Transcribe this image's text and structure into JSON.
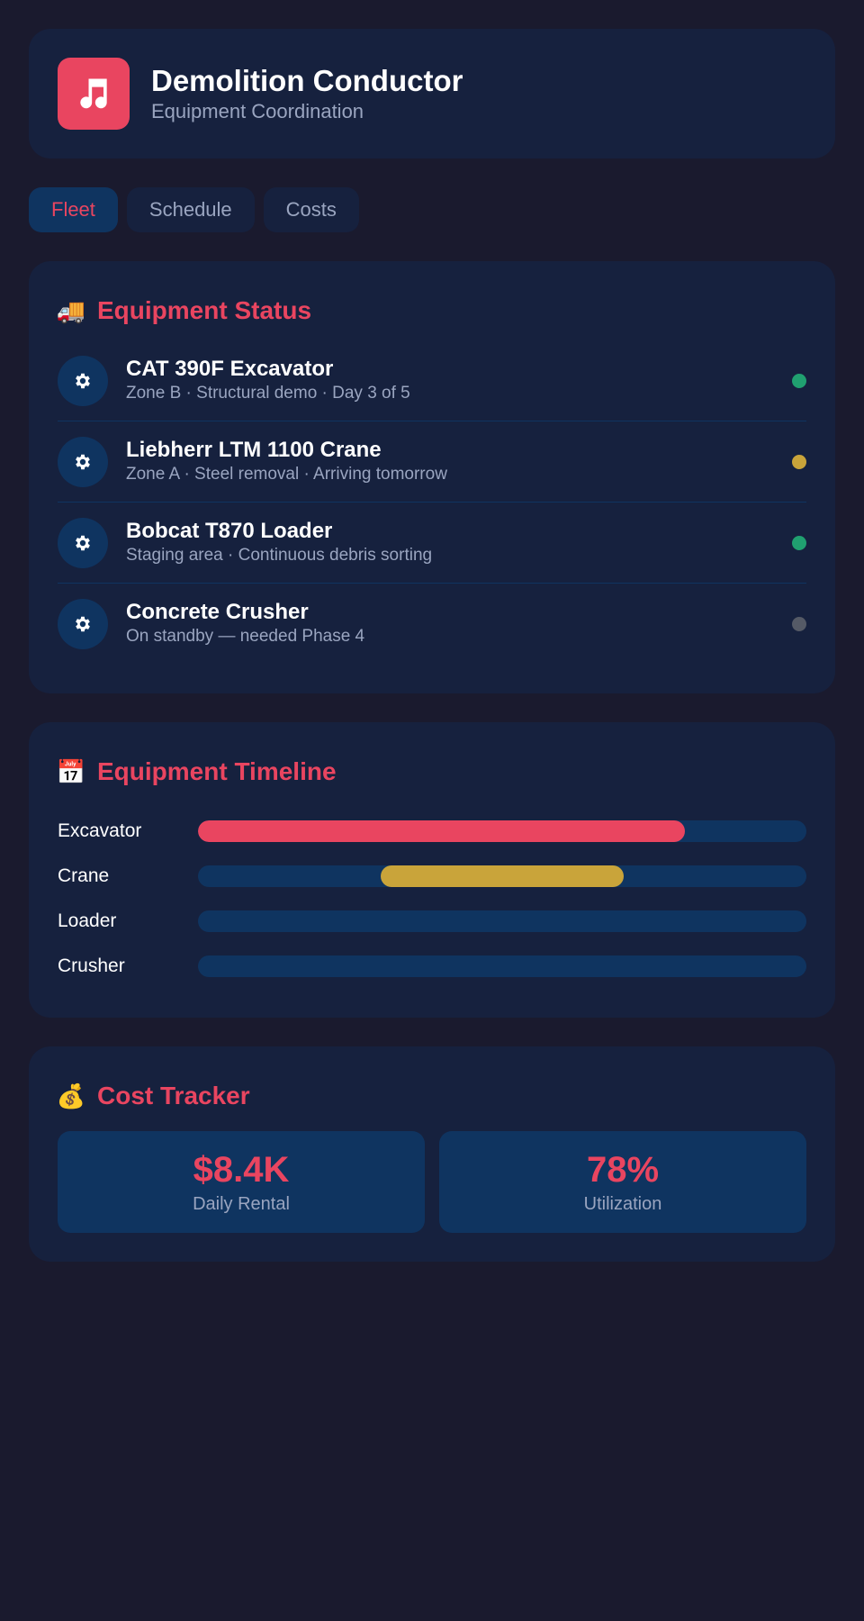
{
  "app": {
    "icon": "music-note-icon",
    "title": "Demolition Conductor",
    "subtitle": "Equipment Coordination"
  },
  "tabs": [
    {
      "label": "Fleet",
      "active": true
    },
    {
      "label": "Schedule",
      "active": false
    },
    {
      "label": "Costs",
      "active": false
    }
  ],
  "status_section": {
    "icon": "delivery-truck-icon",
    "emoji": "🚚",
    "title": "Equipment Status",
    "items": [
      {
        "name": "CAT 390F Excavator",
        "detail": "Zone B · Structural demo · Day 3 of 5",
        "icon": "gear-icon",
        "status_color": "#20a070"
      },
      {
        "name": "Liebherr LTM 1100 Crane",
        "detail": "Zone A · Steel removal · Arriving tomorrow",
        "icon": "gear-icon",
        "status_color": "#c9a43a"
      },
      {
        "name": "Bobcat T870 Loader",
        "detail": "Staging area · Continuous debris sorting",
        "icon": "gear-icon",
        "status_color": "#20a070"
      },
      {
        "name": "Concrete Crusher",
        "detail": "On standby — needed Phase 4",
        "icon": "gear-icon",
        "status_color": "#555a66"
      }
    ]
  },
  "timeline_section": {
    "icon": "calendar-icon",
    "emoji": "📅",
    "title": "Equipment Timeline",
    "rows": [
      {
        "label": "Excavator",
        "start": 0.0,
        "end": 0.8,
        "color": "#e94560"
      },
      {
        "label": "Crane",
        "start": 0.3,
        "end": 0.7,
        "color": "#c9a43a"
      },
      {
        "label": "Loader",
        "start": 0,
        "end": 0,
        "color": "#20a070"
      },
      {
        "label": "Crusher",
        "start": 0,
        "end": 0,
        "color": "#555a66"
      }
    ]
  },
  "cost_section": {
    "icon": "money-bag-icon",
    "emoji": "💰",
    "title": "Cost Tracker",
    "stats": [
      {
        "value": "$8.4K",
        "label": "Daily Rental"
      },
      {
        "value": "78%",
        "label": "Utilization"
      }
    ]
  },
  "colors": {
    "background": "#1a1a2e",
    "card": "#16213e",
    "accent": "#e94560",
    "surface": "#0f3460",
    "muted_text": "#9aa5c0"
  }
}
